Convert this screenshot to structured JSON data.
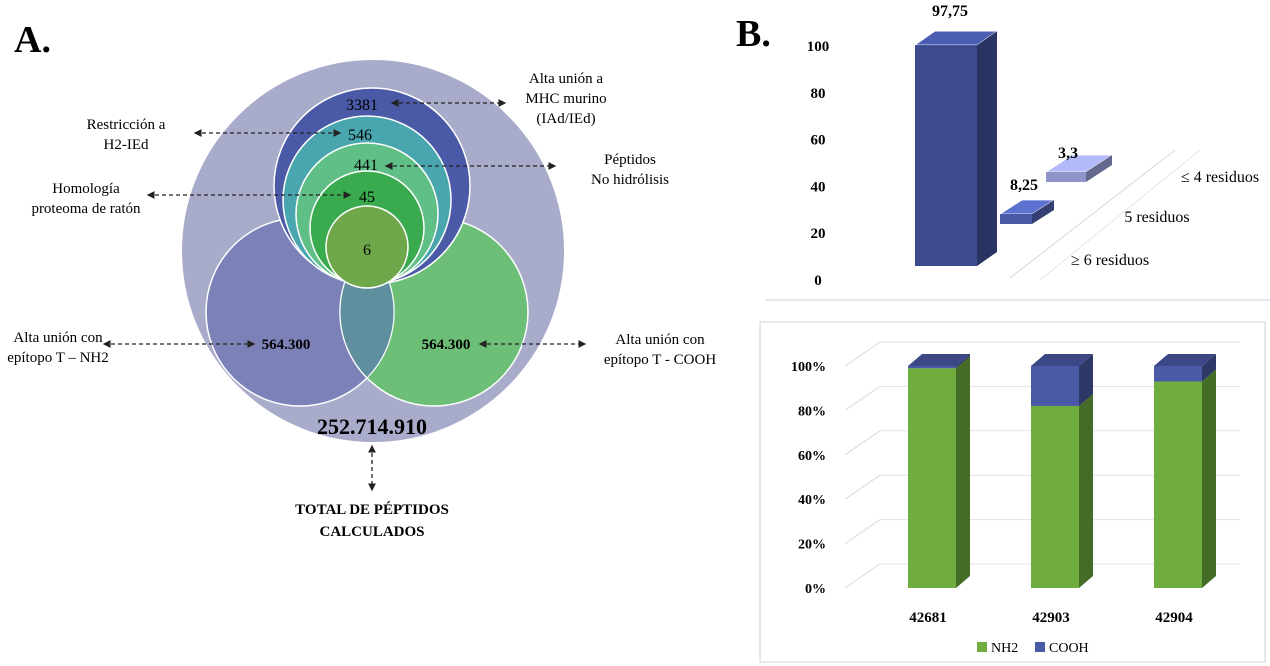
{
  "panel_a": {
    "label": "A.",
    "total_value": "252.714.910",
    "total_caption_line1": "TOTAL DE PÉPTIDOS",
    "total_caption_line2": "CALCULADOS",
    "left_value": "564.300",
    "right_value": "564.300",
    "left_caption_line1": "Alta unión con",
    "left_caption_line2": "epítopo T – NH2",
    "right_caption_line1": "Alta unión con",
    "right_caption_line2": "epítopo T - COOH",
    "nested": [
      {
        "value": "3381",
        "caption": [
          "Alta unión a",
          "MHC murino",
          "(IAd/IEd)"
        ],
        "color": "#4a5aa6"
      },
      {
        "value": "546",
        "caption": [
          "Restricción a",
          "H2-IEd"
        ],
        "color": "#4aa6ae"
      },
      {
        "value": "441",
        "caption": [
          "Péptidos",
          "No hidrólisis"
        ],
        "color": "#5fbf86"
      },
      {
        "value": "45",
        "caption": [
          "Homología",
          "proteoma de ratón"
        ],
        "color": "#3aaa4e"
      },
      {
        "value": "6",
        "caption": [],
        "color": "#6fa84a"
      }
    ],
    "colors": {
      "outer": "#a8abc9",
      "left": "#7c82b8",
      "right": "#6dbf78",
      "overlap": "#5f8f9f"
    }
  },
  "panel_b": {
    "label": "B.",
    "top_chart": {
      "chart_data": {
        "type": "bar",
        "title": "",
        "categories": [
          "≥ 6 residuos",
          "5 residuos",
          "≤ 4 residuos"
        ],
        "values": [
          97.75,
          8.25,
          3.3
        ],
        "value_labels": [
          "97,75",
          "8,25",
          "3,3"
        ],
        "yticks": [
          "0",
          "20",
          "40",
          "60",
          "80",
          "100"
        ],
        "ylim": [
          0,
          100
        ],
        "colors": [
          "#3c4a8e",
          "#4a5aa6",
          "#8f95c9"
        ]
      }
    },
    "bottom_chart": {
      "chart_data": {
        "type": "bar",
        "stacked": true,
        "percent": true,
        "categories": [
          "42681",
          "42903",
          "42904"
        ],
        "series": [
          {
            "name": "NH2",
            "values": [
              99,
              82,
              93
            ],
            "color": "#6fae3e"
          },
          {
            "name": "COOH",
            "values": [
              1,
              18,
              7
            ],
            "color": "#4a5aa6"
          }
        ],
        "yticks": [
          "0%",
          "20%",
          "40%",
          "60%",
          "80%",
          "100%"
        ],
        "legend_position": "bottom"
      }
    }
  }
}
